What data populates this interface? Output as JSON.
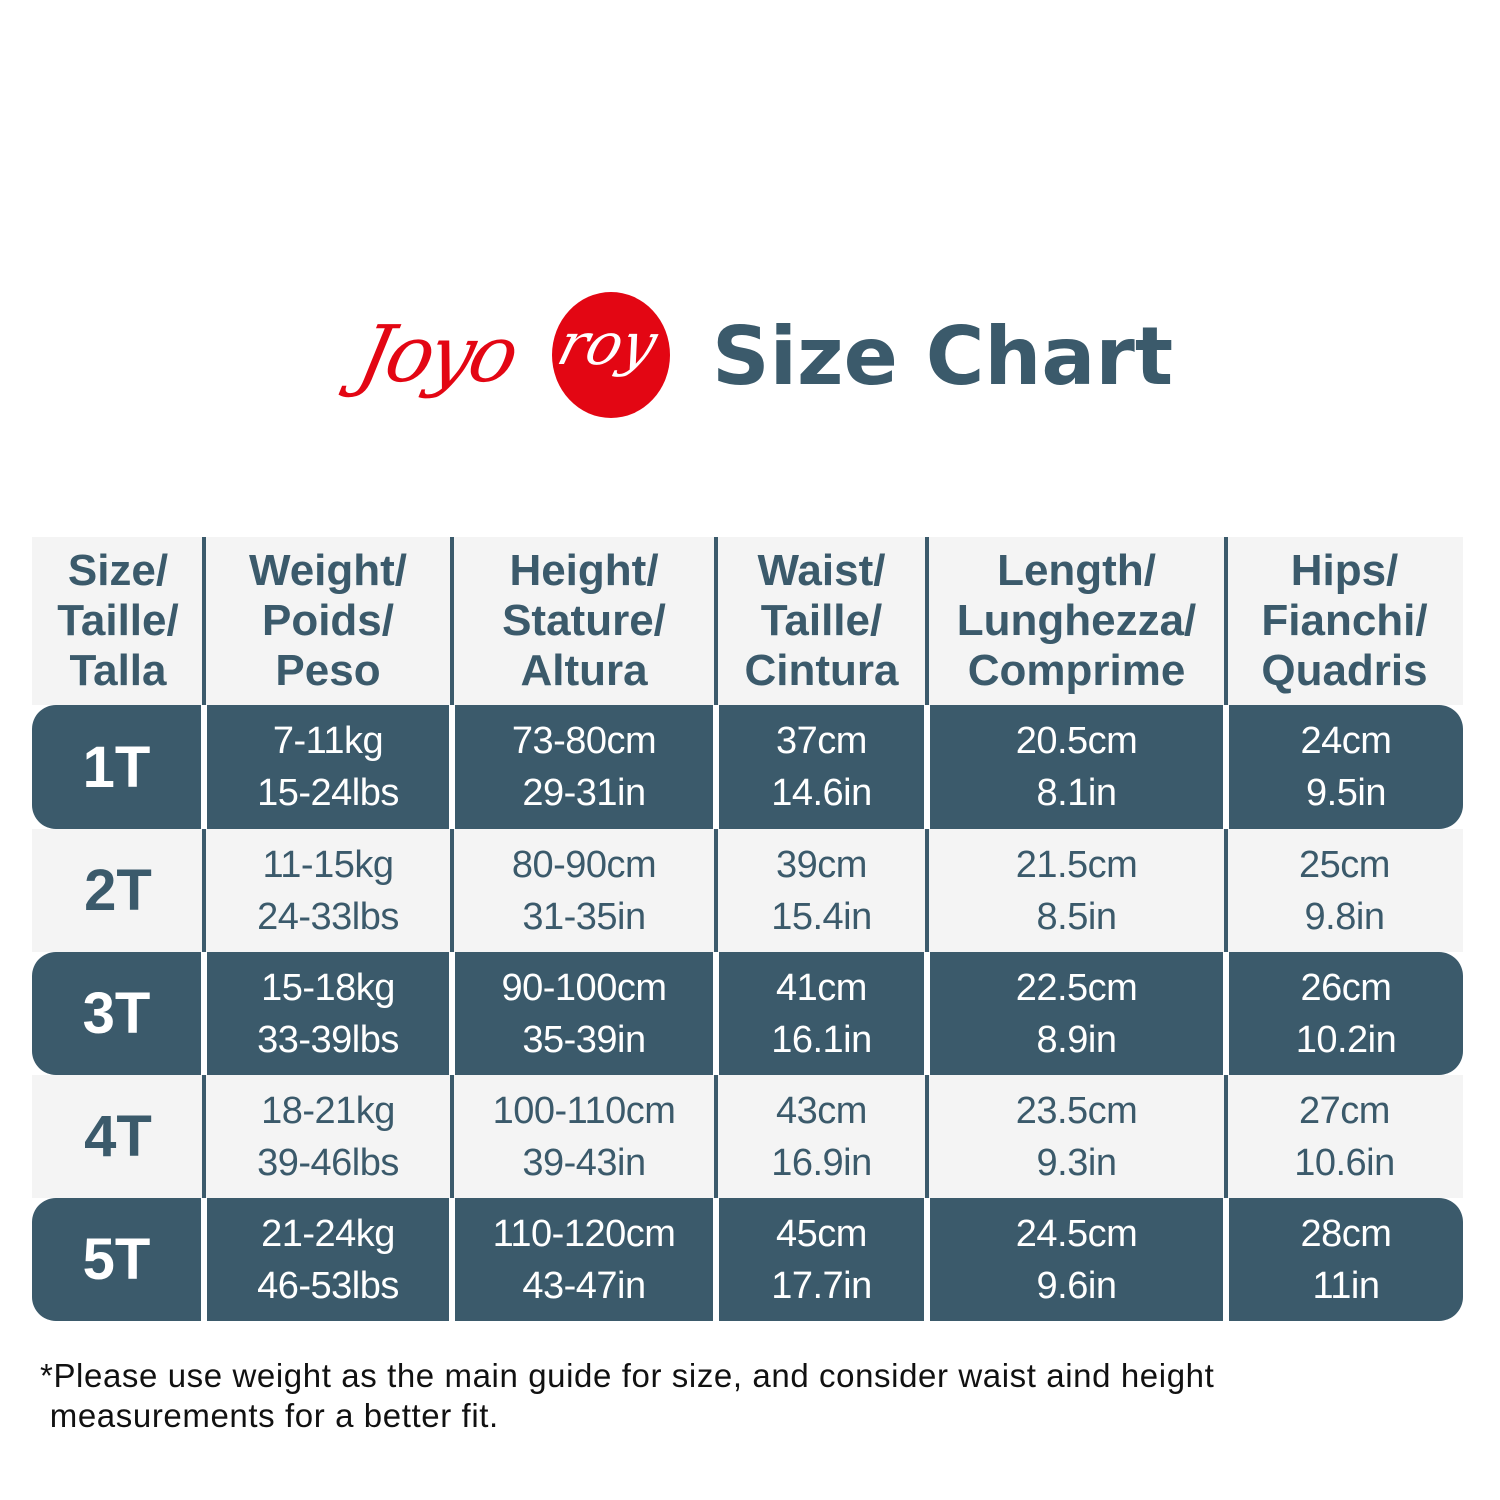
{
  "brand": {
    "logo_text": "Joyoroy",
    "logo_color": "#e30613"
  },
  "title": "Size Chart",
  "colors": {
    "primary": "#3b5a6b",
    "light_row": "#f4f4f4"
  },
  "table": {
    "headers": [
      [
        "Size/",
        "Taille/",
        "Talla"
      ],
      [
        "Weight/",
        "Poids/",
        "Peso"
      ],
      [
        "Height/",
        "Stature/",
        "Altura"
      ],
      [
        "Waist/",
        "Taille/",
        "Cintura"
      ],
      [
        "Length/",
        "Lunghezza/",
        "Comprime"
      ],
      [
        "Hips/",
        "Fianchi/",
        "Quadris"
      ]
    ],
    "rows": [
      {
        "size": "1T",
        "weight": [
          "7-11kg",
          "15-24lbs"
        ],
        "height": [
          "73-80cm",
          "29-31in"
        ],
        "waist": [
          "37cm",
          "14.6in"
        ],
        "length": [
          "20.5cm",
          "8.1in"
        ],
        "hips": [
          "24cm",
          "9.5in"
        ]
      },
      {
        "size": "2T",
        "weight": [
          "11-15kg",
          "24-33lbs"
        ],
        "height": [
          "80-90cm",
          "31-35in"
        ],
        "waist": [
          "39cm",
          "15.4in"
        ],
        "length": [
          "21.5cm",
          "8.5in"
        ],
        "hips": [
          "25cm",
          "9.8in"
        ]
      },
      {
        "size": "3T",
        "weight": [
          "15-18kg",
          "33-39lbs"
        ],
        "height": [
          "90-100cm",
          "35-39in"
        ],
        "waist": [
          "41cm",
          "16.1in"
        ],
        "length": [
          "22.5cm",
          "8.9in"
        ],
        "hips": [
          "26cm",
          "10.2in"
        ]
      },
      {
        "size": "4T",
        "weight": [
          "18-21kg",
          "39-46lbs"
        ],
        "height": [
          "100-110cm",
          "39-43in"
        ],
        "waist": [
          "43cm",
          "16.9in"
        ],
        "length": [
          "23.5cm",
          "9.3in"
        ],
        "hips": [
          "27cm",
          "10.6in"
        ]
      },
      {
        "size": "5T",
        "weight": [
          "21-24kg",
          "46-53lbs"
        ],
        "height": [
          "110-120cm",
          "43-47in"
        ],
        "waist": [
          "45cm",
          "17.7in"
        ],
        "length": [
          "24.5cm",
          "9.6in"
        ],
        "hips": [
          "28cm",
          "11in"
        ]
      }
    ]
  },
  "note": {
    "line1": "*Please use weight as the main guide for size, and consider waist aind height",
    "line2": " measurements for a better fit."
  }
}
